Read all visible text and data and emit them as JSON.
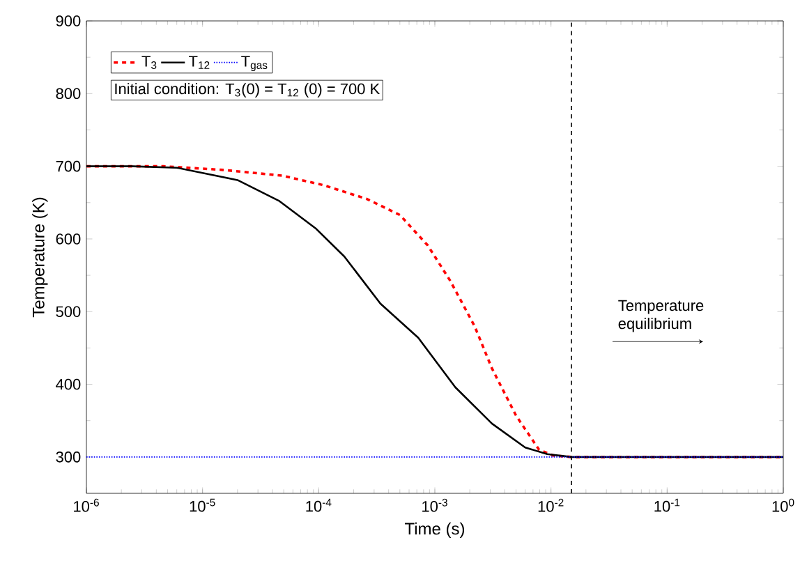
{
  "chart_data": {
    "type": "line",
    "xlabel": "Time (s)",
    "ylabel": "Temperature (K)",
    "log": "x",
    "xlim": [
      1e-06,
      1
    ],
    "ylim": [
      250,
      900
    ],
    "xticks": [
      {
        "value": 1e-06,
        "label": "10$^{-6}$"
      },
      {
        "value": 1e-05,
        "label": "10$^{-5}$"
      },
      {
        "value": 0.0001,
        "label": "10$^{-4}$"
      },
      {
        "value": 0.001,
        "label": "10$^{-3}$"
      },
      {
        "value": 0.01,
        "label": "10$^{-2}$"
      },
      {
        "value": 0.1,
        "label": "10$^{-1}$"
      },
      {
        "value": 1,
        "label": "10$^{0}$"
      }
    ],
    "yticks": [
      300,
      400,
      500,
      600,
      700,
      800,
      900
    ],
    "series": [
      {
        "name": "T$_{3}$",
        "color": "#ff0000",
        "line_style": "dashed",
        "x": [
          1e-06,
          4.6e-06,
          1.5e-05,
          4.9e-05,
          0.00011,
          0.00026,
          0.0005,
          0.00087,
          0.00135,
          0.0022,
          0.0031,
          0.005,
          0.0079,
          0.0105,
          0.015,
          0.1,
          1
        ],
        "values": [
          700,
          700,
          695,
          687,
          674,
          655,
          633,
          591,
          543,
          480,
          422,
          357,
          310,
          302,
          300,
          300,
          300
        ]
      },
      {
        "name": "T$_{12}$",
        "color": "#000000",
        "line_style": "solid",
        "x": [
          1e-06,
          2.5e-06,
          6e-06,
          2e-05,
          4.6e-05,
          9.5e-05,
          0.000166,
          0.00034,
          0.00072,
          0.0015,
          0.0031,
          0.006,
          0.0093,
          0.015,
          0.1,
          1
        ],
        "values": [
          700,
          700,
          698,
          681,
          652,
          614,
          576,
          511,
          464,
          396,
          346,
          313,
          304,
          300,
          300,
          300
        ]
      },
      {
        "name": "T$_{gas}$",
        "color": "#0000ff",
        "line_style": "dotted",
        "x": [
          1e-06,
          1
        ],
        "values": [
          300,
          300
        ]
      }
    ],
    "legend": "top left",
    "ref_lines": [
      {
        "axis": "x",
        "value": 0.015,
        "color": "#000000",
        "line_style": "dashed"
      }
    ],
    "annotations": [
      "Initial condition: T$_{3}$(0) = T$_{12}$ (0) = 700 K",
      "Temperature equilibrium"
    ]
  }
}
